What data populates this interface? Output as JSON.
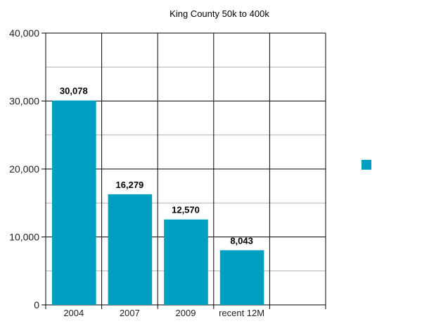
{
  "chart_data": {
    "type": "bar",
    "title": "King County 50k to 400k",
    "categories": [
      "2004",
      "2007",
      "2009",
      "recent 12M",
      ""
    ],
    "values": [
      30078,
      16279,
      12570,
      8043,
      null
    ],
    "value_labels": [
      "30,078",
      "16,279",
      "12,570",
      "8,043",
      ""
    ],
    "xlabel": "",
    "ylabel": "",
    "ylim": [
      0,
      40000
    ],
    "yticks": [
      0,
      10000,
      20000,
      30000,
      40000
    ],
    "ytick_labels": [
      "0",
      "10,000",
      "20,000",
      "30,000",
      "40,000"
    ],
    "minor_grid_step": 5000,
    "grid": true,
    "legend": {
      "placement": "right",
      "entries": [
        {
          "name": "",
          "color": "#009EC0"
        }
      ]
    },
    "bar_color": "#009EC0"
  }
}
